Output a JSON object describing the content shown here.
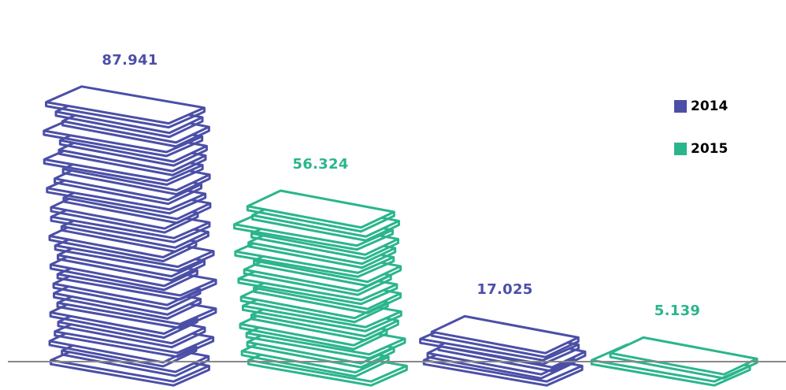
{
  "chart_data": {
    "type": "bar",
    "categories": [
      "",
      "",
      "",
      ""
    ],
    "series": [
      {
        "name": "2014",
        "color": "#4b4fa6"
      },
      {
        "name": "2015",
        "color": "#2bb58c"
      }
    ],
    "bars": [
      {
        "series": "2014",
        "value": 87941,
        "label": "87.941"
      },
      {
        "series": "2015",
        "value": 56324,
        "label": "56.324"
      },
      {
        "series": "2014",
        "value": 17025,
        "label": "17.025"
      },
      {
        "series": "2015",
        "value": 5139,
        "label": "5.139"
      }
    ],
    "legend_position": "right",
    "grid": false
  },
  "colors": {
    "baseline": "#888888"
  }
}
